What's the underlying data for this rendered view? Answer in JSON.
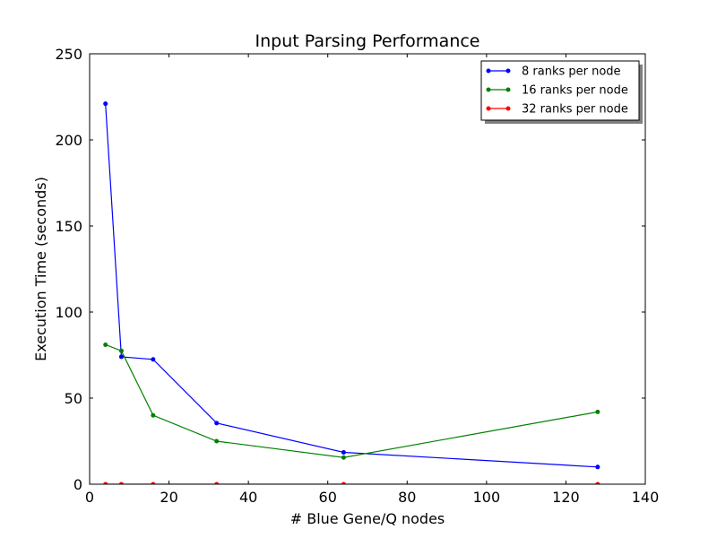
{
  "chart_data": {
    "type": "line",
    "title": "Input Parsing Performance",
    "xlabel": "# Blue Gene/Q nodes",
    "ylabel": "Execution Time (seconds)",
    "xlim": [
      0,
      140
    ],
    "ylim": [
      0,
      250
    ],
    "xticks": [
      0,
      20,
      40,
      60,
      80,
      100,
      120,
      140
    ],
    "yticks": [
      0,
      50,
      100,
      150,
      200,
      250
    ],
    "grid": false,
    "legend_position": "top-right",
    "series": [
      {
        "name": "8 ranks per node",
        "color": "#0000ff",
        "x": [
          4,
          8,
          16,
          32,
          64,
          128
        ],
        "y": [
          221,
          74,
          72.5,
          35.5,
          18.5,
          10
        ]
      },
      {
        "name": "16 ranks per node",
        "color": "#008000",
        "x": [
          4,
          8,
          16,
          32,
          64,
          128
        ],
        "y": [
          81,
          77.5,
          40,
          25,
          15.5,
          42
        ]
      },
      {
        "name": "32 ranks per node",
        "color": "#ff0000",
        "x": [
          4,
          8,
          16,
          32,
          64,
          128
        ],
        "y": [
          0,
          0,
          0,
          0,
          0,
          0
        ]
      }
    ]
  }
}
